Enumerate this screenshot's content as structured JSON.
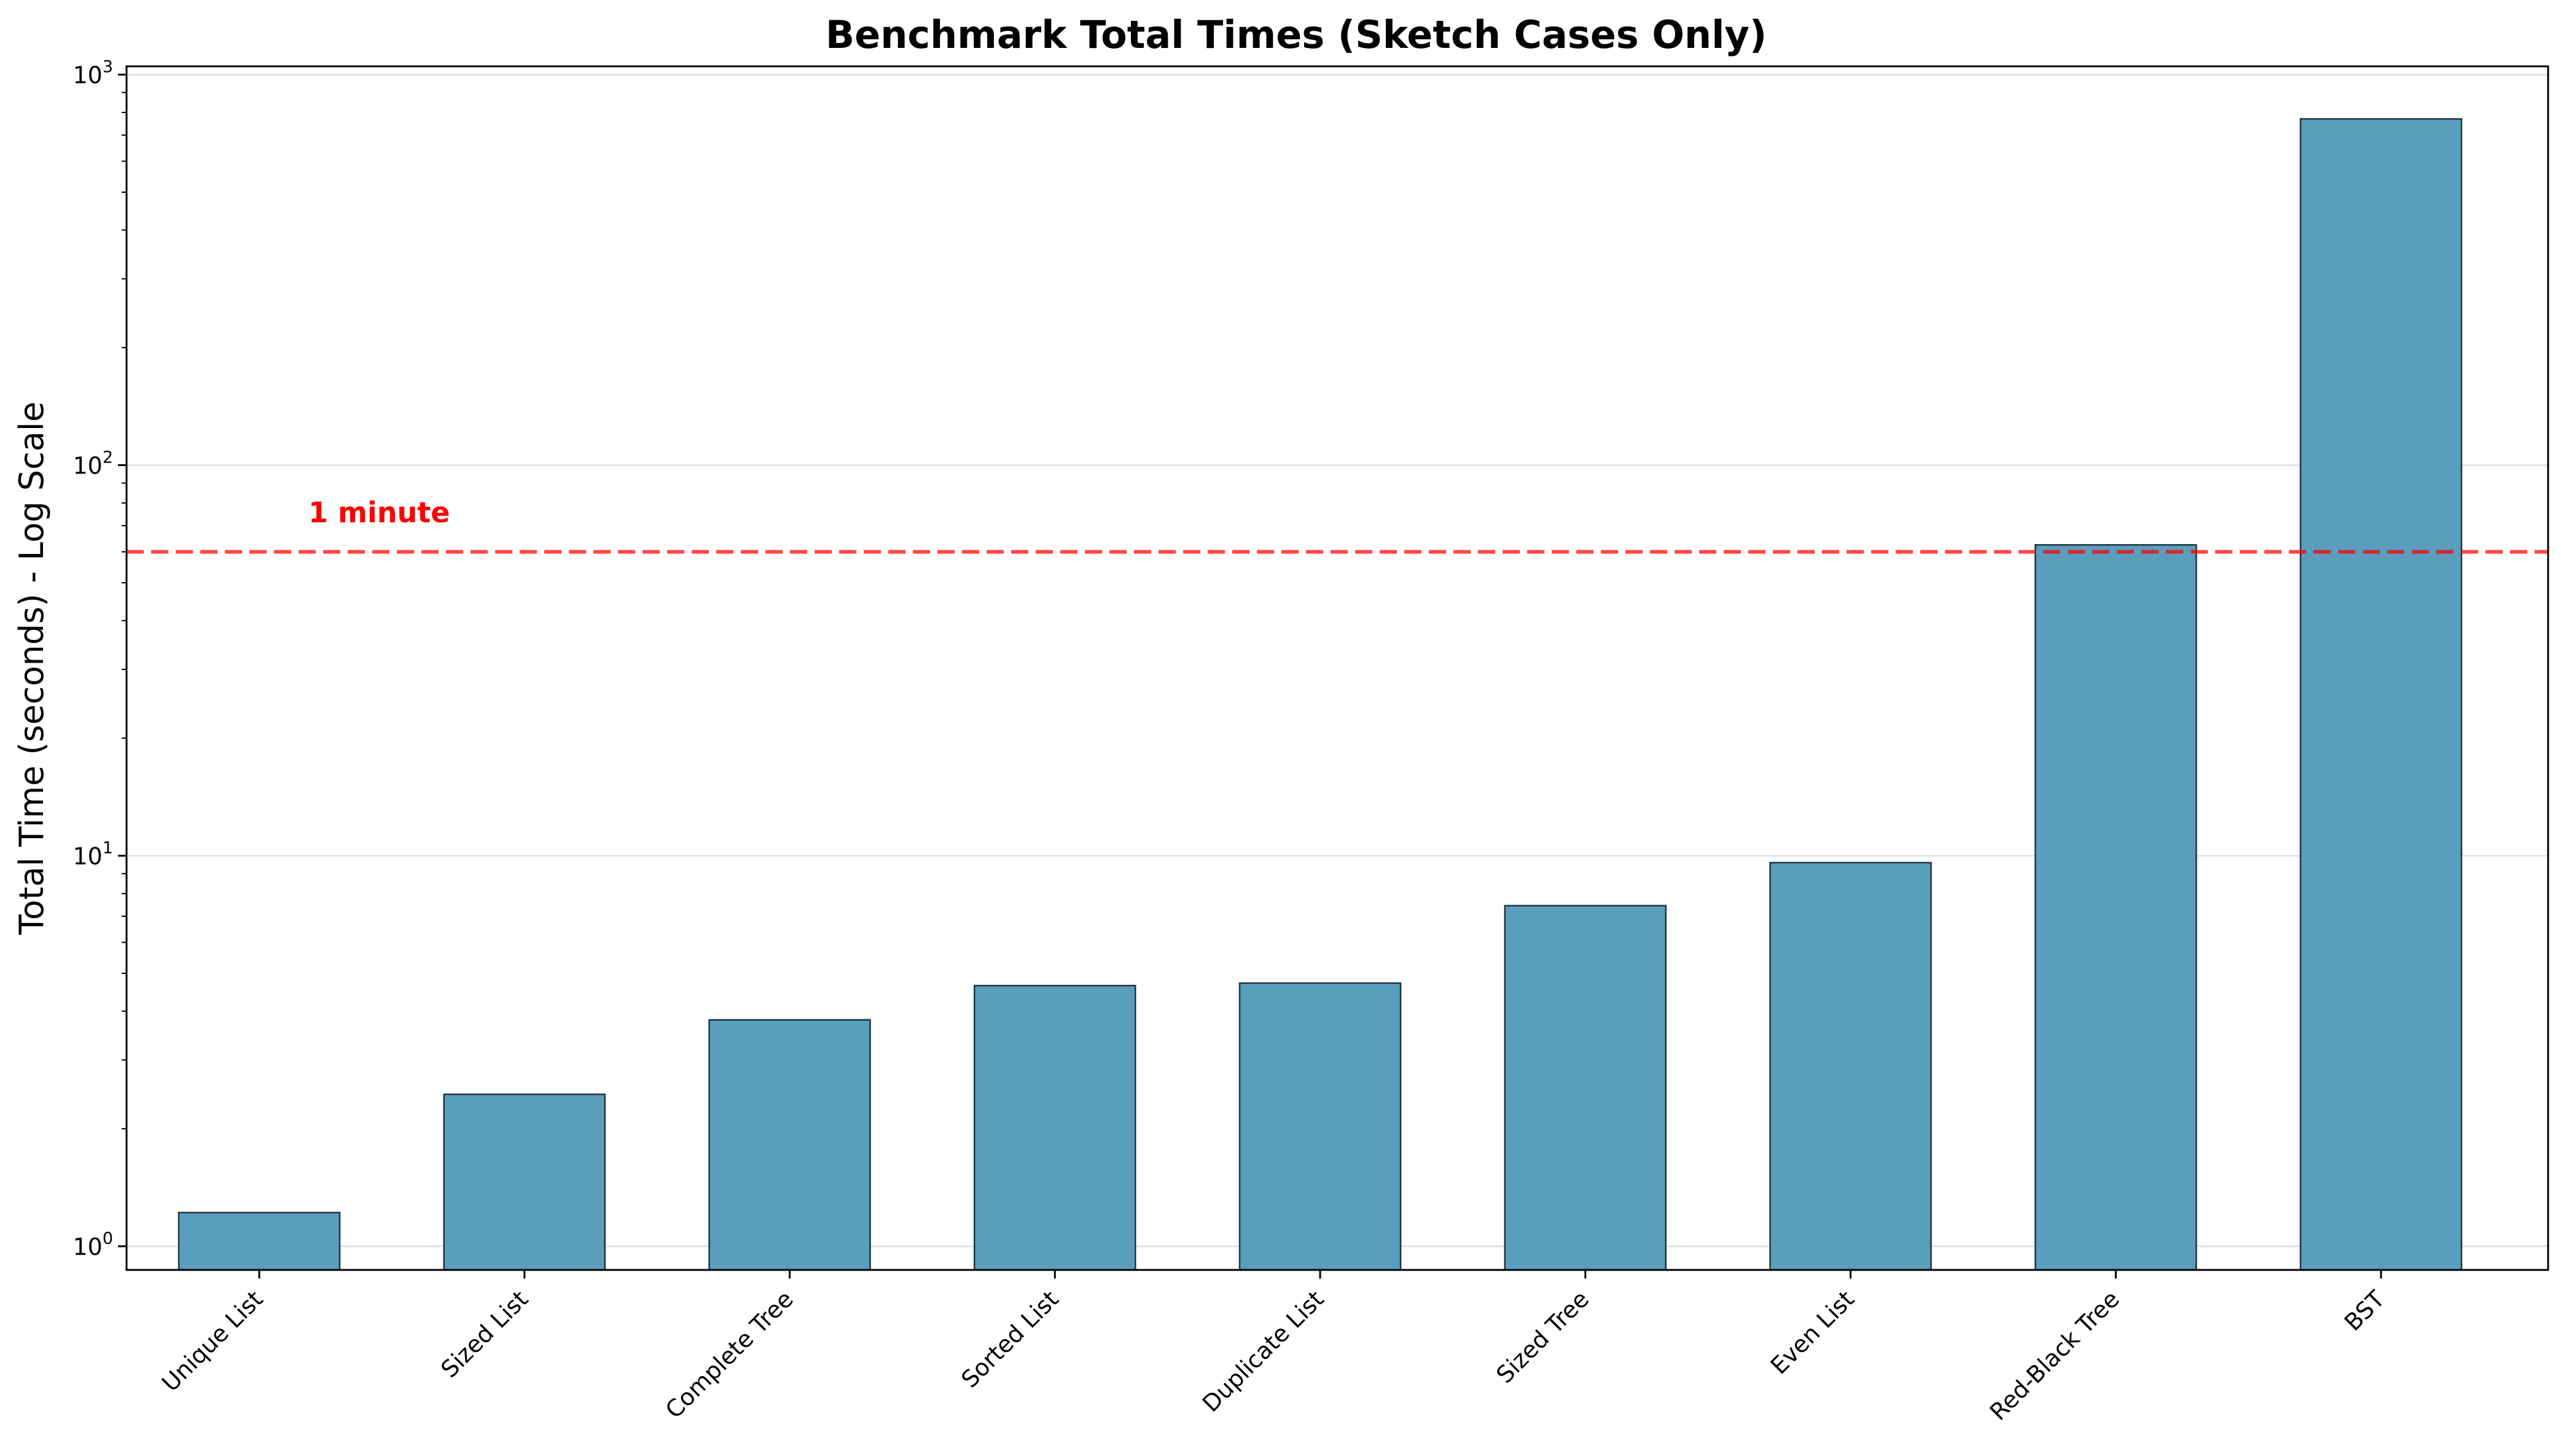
{
  "chart_data": {
    "type": "bar",
    "title": "Benchmark Total Times (Sketch Cases Only)",
    "xlabel": "",
    "ylabel": "Total Time (seconds) - Log Scale",
    "yscale": "log",
    "ylim": [
      0.87,
      1050
    ],
    "yticks": [
      {
        "value": 1,
        "base": "10",
        "exp": "0"
      },
      {
        "value": 10,
        "base": "10",
        "exp": "1"
      },
      {
        "value": 100,
        "base": "10",
        "exp": "2"
      },
      {
        "value": 1000,
        "base": "10",
        "exp": "3"
      }
    ],
    "grid": "y",
    "categories": [
      "Unique List",
      "Sized List",
      "Complete Tree",
      "Sorted List",
      "Duplicate List",
      "Sized Tree",
      "Even List",
      "Red-Black Tree",
      "BST"
    ],
    "values": [
      1.22,
      2.45,
      3.8,
      4.65,
      4.72,
      7.45,
      9.6,
      62.5,
      770
    ],
    "bar_color": "#5a9ebd",
    "bar_edge_color": "#1f3340",
    "reference_line": {
      "value": 60,
      "label": "1 minute",
      "color": "#ff0000",
      "style": "dashed"
    }
  }
}
